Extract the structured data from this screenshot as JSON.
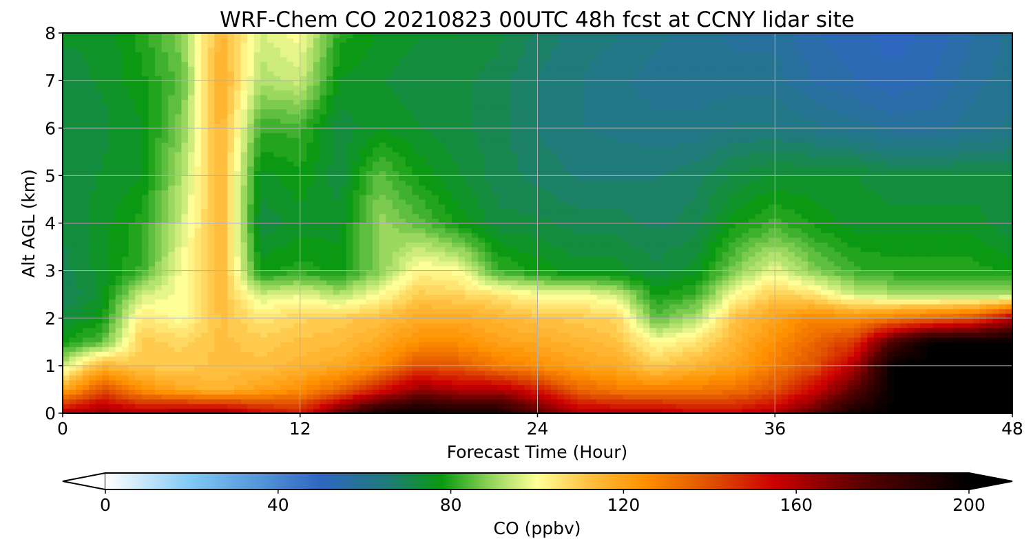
{
  "chart_data": {
    "type": "heatmap",
    "title": "WRF-Chem CO  20210823 00UTC 48h fcst at CCNY lidar site",
    "xlabel": "Forecast Time (Hour)",
    "ylabel": "Alt AGL (km)",
    "xlim": [
      0,
      48
    ],
    "ylim": [
      0,
      8
    ],
    "xticks": [
      "0",
      "12",
      "24",
      "36",
      "48"
    ],
    "yticks": [
      "0",
      "1",
      "2",
      "3",
      "4",
      "5",
      "6",
      "7",
      "8"
    ],
    "grid": true,
    "colorbar": {
      "label": "CO  (ppbv)",
      "ticks": [
        "0",
        "40",
        "80",
        "120",
        "160",
        "200"
      ],
      "range": [
        0,
        200
      ],
      "extend": "both",
      "stops": [
        {
          "v": 0,
          "c": "#ffffff"
        },
        {
          "v": 20,
          "c": "#7fc8f4"
        },
        {
          "v": 50,
          "c": "#2f66c0"
        },
        {
          "v": 65,
          "c": "#1f7a7a"
        },
        {
          "v": 78,
          "c": "#0a9a10"
        },
        {
          "v": 90,
          "c": "#9ad860"
        },
        {
          "v": 100,
          "c": "#ffff98"
        },
        {
          "v": 112,
          "c": "#ffc040"
        },
        {
          "v": 125,
          "c": "#ff9000"
        },
        {
          "v": 140,
          "c": "#e05000"
        },
        {
          "v": 155,
          "c": "#cc0000"
        },
        {
          "v": 175,
          "c": "#5a0000"
        },
        {
          "v": 200,
          "c": "#000000"
        }
      ]
    },
    "hours": [
      0,
      2,
      4,
      6,
      8,
      10,
      12,
      14,
      16,
      18,
      20,
      22,
      24,
      26,
      28,
      30,
      32,
      34,
      36,
      38,
      40,
      42,
      44,
      46,
      48
    ],
    "altitudes_km": [
      0,
      0.5,
      1,
      1.5,
      2,
      2.5,
      3,
      4,
      5,
      6,
      7,
      8
    ],
    "values": [
      [
        160,
        165,
        160,
        165,
        165,
        155,
        150,
        175,
        195,
        200,
        195,
        195,
        175,
        160,
        160,
        160,
        155,
        155,
        160,
        175,
        195,
        200,
        200,
        200,
        200
      ],
      [
        118,
        140,
        125,
        118,
        115,
        120,
        125,
        135,
        150,
        165,
        160,
        160,
        150,
        135,
        130,
        128,
        130,
        132,
        140,
        155,
        175,
        200,
        200,
        200,
        200
      ],
      [
        95,
        115,
        110,
        110,
        112,
        112,
        115,
        118,
        125,
        140,
        138,
        130,
        125,
        120,
        118,
        110,
        115,
        120,
        130,
        140,
        160,
        200,
        200,
        200,
        200
      ],
      [
        78,
        85,
        110,
        108,
        112,
        110,
        112,
        113,
        118,
        125,
        125,
        120,
        118,
        115,
        112,
        100,
        105,
        115,
        125,
        135,
        145,
        180,
        200,
        200,
        200
      ],
      [
        72,
        78,
        105,
        100,
        112,
        105,
        108,
        110,
        112,
        118,
        118,
        115,
        112,
        110,
        108,
        85,
        92,
        112,
        120,
        128,
        125,
        130,
        135,
        140,
        160
      ],
      [
        68,
        75,
        95,
        100,
        113,
        95,
        98,
        92,
        100,
        110,
        108,
        105,
        100,
        100,
        95,
        78,
        82,
        100,
        110,
        105,
        95,
        92,
        90,
        90,
        90
      ],
      [
        70,
        75,
        82,
        100,
        115,
        78,
        80,
        78,
        88,
        102,
        100,
        82,
        78,
        75,
        75,
        72,
        75,
        88,
        98,
        88,
        82,
        80,
        80,
        80,
        78
      ],
      [
        72,
        75,
        80,
        95,
        115,
        72,
        75,
        75,
        90,
        85,
        78,
        72,
        72,
        70,
        70,
        68,
        70,
        78,
        82,
        78,
        75,
        75,
        75,
        75,
        72
      ],
      [
        72,
        74,
        76,
        92,
        115,
        75,
        78,
        72,
        85,
        78,
        74,
        70,
        68,
        66,
        66,
        66,
        68,
        72,
        74,
        74,
        74,
        72,
        72,
        72,
        72
      ],
      [
        72,
        73,
        76,
        88,
        116,
        82,
        82,
        72,
        76,
        74,
        72,
        70,
        66,
        64,
        63,
        62,
        62,
        64,
        64,
        62,
        60,
        58,
        58,
        60,
        62
      ],
      [
        73,
        74,
        78,
        85,
        118,
        92,
        95,
        76,
        74,
        72,
        72,
        70,
        66,
        64,
        62,
        60,
        60,
        60,
        60,
        56,
        54,
        52,
        54,
        58,
        60
      ],
      [
        74,
        74,
        80,
        88,
        115,
        96,
        100,
        80,
        76,
        74,
        74,
        72,
        68,
        65,
        64,
        62,
        60,
        58,
        58,
        54,
        52,
        50,
        52,
        56,
        60
      ]
    ]
  }
}
